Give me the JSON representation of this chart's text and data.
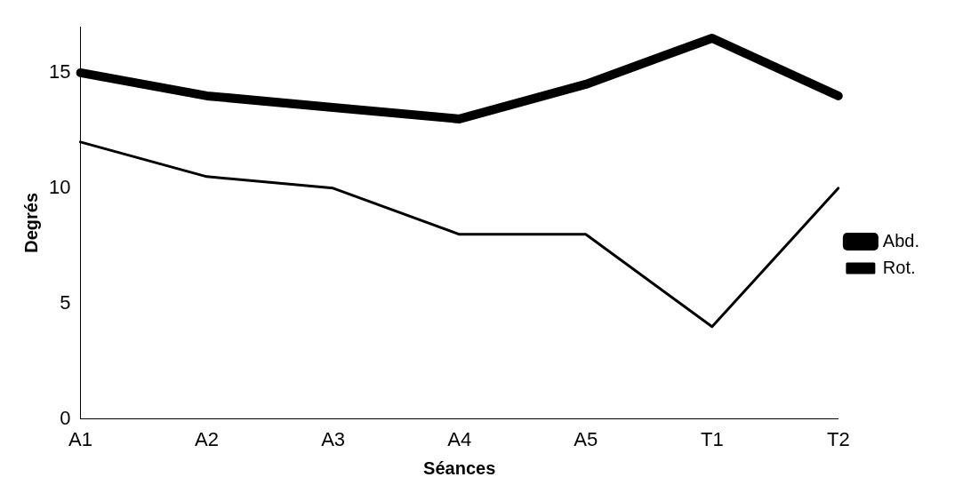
{
  "chart_data": {
    "type": "line",
    "xlabel": "Séances",
    "ylabel": "Degrés",
    "categories": [
      "A1",
      "A2",
      "A3",
      "A4",
      "A5",
      "T1",
      "T2"
    ],
    "series": [
      {
        "name": "Abd.",
        "color": "#000000",
        "values": [
          15,
          14,
          13.5,
          13,
          14.5,
          16.5,
          14
        ]
      },
      {
        "name": "Rot.",
        "color": "#000000",
        "values": [
          12,
          10.5,
          10,
          8,
          8,
          4,
          10
        ]
      }
    ],
    "ylim": [
      0,
      17
    ],
    "yticks": [
      0,
      5,
      10,
      15
    ],
    "grid": false,
    "legend": "right",
    "marker": "none"
  }
}
